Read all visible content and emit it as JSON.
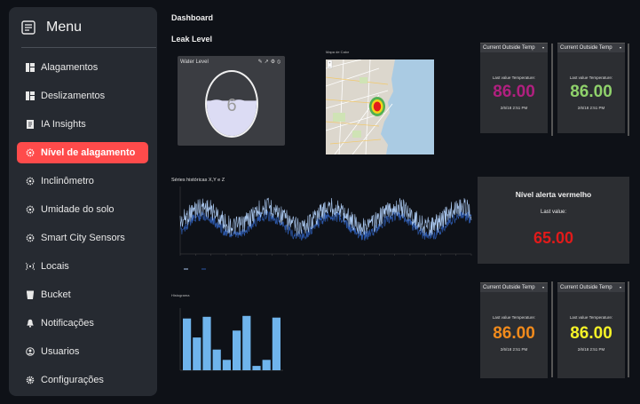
{
  "sidebar": {
    "title": "Menu",
    "items": [
      {
        "label": "Alagamentos",
        "icon": "dashboard-grid-icon"
      },
      {
        "label": "Deslizamentos",
        "icon": "dashboard-grid-icon"
      },
      {
        "label": "IA Insights",
        "icon": "document-icon"
      },
      {
        "label": "Nível de alagamento",
        "icon": "sensor-gear-icon",
        "active": true
      },
      {
        "label": "Inclinômetro",
        "icon": "sensor-gear-icon"
      },
      {
        "label": "Umidade do solo",
        "icon": "sensor-gear-icon"
      },
      {
        "label": "Smart City Sensors",
        "icon": "sensor-gear-icon"
      },
      {
        "label": "Locais",
        "icon": "broadcast-icon"
      },
      {
        "label": "Bucket",
        "icon": "bucket-icon"
      },
      {
        "label": "Notificações",
        "icon": "bell-icon"
      },
      {
        "label": "Usuarios",
        "icon": "user-circle-icon"
      },
      {
        "label": "Configurações",
        "icon": "gear-icon"
      }
    ]
  },
  "main": {
    "page_title": "Dashboard",
    "section_title": "Leak Level",
    "water_level": {
      "label": "Water Level",
      "value": "6",
      "fill_fraction": 0.55
    },
    "map": {
      "title": "Mapa de Calor"
    },
    "series_title": "Séries históricas X,Y e Z",
    "bar_title": "Histograma"
  },
  "temp_cards": [
    {
      "header": "Current Outside Temp",
      "sub": "Last value Temperature:",
      "value": "86.00",
      "timestamp": "2/6/18 2:51 PM",
      "color": "#b0207f"
    },
    {
      "header": "Current Outside Temp",
      "sub": "Last value Temperature:",
      "value": "86.00",
      "timestamp": "2/6/18 2:51 PM",
      "color": "#8fd16b"
    },
    {
      "header": "Current Outside Temp",
      "sub": "Last value Temperature:",
      "value": "86.00",
      "timestamp": "2/6/18 2:51 PM",
      "color": "#f08a1c"
    },
    {
      "header": "Current Outside Temp",
      "sub": "Last value Temperature:",
      "value": "86.00",
      "timestamp": "2/6/18 2:51 PM",
      "color": "#f5f227"
    }
  ],
  "alert": {
    "title": "Nível alerta vermelho",
    "sub": "Last value:",
    "value": "65.00",
    "color": "#e21a1a"
  },
  "colors": {
    "accent": "#ff4b4b",
    "bar": "#6fb4ec",
    "series_light": "#a9c7ef",
    "series_dark": "#2c57a8"
  },
  "bar_chart": {
    "values": [
      6,
      3.8,
      6.2,
      2.4,
      1.2,
      4.6,
      6.3,
      0.5,
      1.2,
      6.1
    ],
    "ymax": 7
  }
}
